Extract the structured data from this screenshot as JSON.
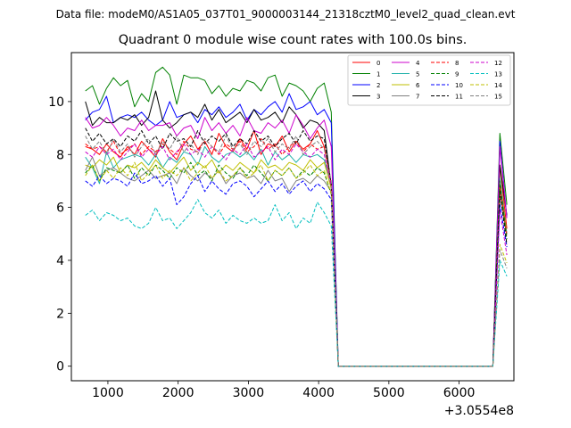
{
  "chart_data": {
    "type": "line",
    "suptitle": "Data file: modeM0/AS1A05_037T01_9000003144_21318cztM0_level2_quad_clean.evt",
    "title": "Quadrant 0 module wise count rates with 100.0s bins.",
    "xlabel": "",
    "ylabel": "",
    "x_offset_label": "+3.0554e8",
    "xlim": [
      480,
      6780
    ],
    "ylim": [
      -0.55,
      11.85
    ],
    "xticks": [
      1000,
      2000,
      3000,
      4000,
      5000,
      6000
    ],
    "yticks": [
      0,
      2,
      4,
      6,
      8,
      10
    ],
    "x": [
      680,
      780,
      880,
      980,
      1080,
      1180,
      1280,
      1380,
      1480,
      1580,
      1680,
      1780,
      1880,
      1980,
      2080,
      2180,
      2280,
      2380,
      2480,
      2580,
      2680,
      2780,
      2880,
      2980,
      3080,
      3180,
      3280,
      3380,
      3480,
      3580,
      3680,
      3780,
      3880,
      3980,
      4080,
      4180,
      4280,
      4380,
      4480,
      4580,
      4680,
      4780,
      4880,
      4980,
      5080,
      5180,
      5280,
      5380,
      5480,
      5580,
      5680,
      5780,
      5880,
      5980,
      6080,
      6180,
      6280,
      6380,
      6480,
      6580,
      6680
    ],
    "legend": {
      "position": "upper-right",
      "columns": 4
    },
    "series": [
      {
        "name": "0",
        "color": "#ff0000",
        "dash": "solid",
        "values": [
          8.3,
          8.2,
          8.0,
          8.4,
          8.1,
          7.9,
          8.3,
          8.0,
          8.5,
          8.2,
          7.9,
          8.6,
          8.1,
          7.8,
          8.4,
          8.7,
          8.2,
          8.5,
          8.0,
          8.8,
          8.3,
          8.1,
          8.6,
          8.2,
          8.9,
          8.0,
          8.4,
          8.3,
          8.7,
          8.1,
          8.5,
          8.2,
          8.4,
          8.9,
          8.3,
          6.8,
          0.0,
          0.0,
          0.0,
          0.0,
          0.0,
          0.0,
          0.0,
          0.0,
          0.0,
          0.0,
          0.0,
          0.0,
          0.0,
          0.0,
          0.0,
          0.0,
          0.0,
          0.0,
          0.0,
          0.0,
          0.0,
          0.0,
          0.0,
          7.6,
          5.2
        ]
      },
      {
        "name": "1",
        "color": "#008000",
        "dash": "solid",
        "values": [
          10.4,
          10.6,
          9.9,
          10.5,
          10.9,
          10.6,
          10.8,
          9.8,
          10.3,
          10.0,
          11.1,
          11.3,
          11.0,
          9.9,
          11.0,
          10.9,
          10.9,
          10.8,
          10.3,
          10.6,
          10.2,
          10.5,
          10.4,
          10.8,
          10.7,
          10.4,
          10.9,
          11.0,
          10.2,
          10.7,
          10.6,
          10.4,
          10.0,
          10.5,
          10.7,
          9.6,
          0.0,
          0.0,
          0.0,
          0.0,
          0.0,
          0.0,
          0.0,
          0.0,
          0.0,
          0.0,
          0.0,
          0.0,
          0.0,
          0.0,
          0.0,
          0.0,
          0.0,
          0.0,
          0.0,
          0.0,
          0.0,
          0.0,
          0.0,
          8.8,
          6.1
        ]
      },
      {
        "name": "2",
        "color": "#0000ff",
        "dash": "solid",
        "values": [
          9.3,
          9.6,
          9.7,
          10.2,
          9.2,
          9.4,
          9.5,
          9.4,
          9.6,
          9.3,
          9.1,
          9.3,
          10.0,
          9.4,
          9.5,
          9.6,
          9.2,
          9.7,
          9.5,
          9.8,
          9.4,
          9.6,
          9.9,
          9.3,
          9.7,
          9.5,
          9.8,
          10.0,
          9.6,
          10.3,
          9.7,
          9.8,
          10.0,
          9.5,
          9.7,
          9.2,
          0.0,
          0.0,
          0.0,
          0.0,
          0.0,
          0.0,
          0.0,
          0.0,
          0.0,
          0.0,
          0.0,
          0.0,
          0.0,
          0.0,
          0.0,
          0.0,
          0.0,
          0.0,
          0.0,
          0.0,
          0.0,
          0.0,
          0.0,
          8.5,
          5.6
        ]
      },
      {
        "name": "3",
        "color": "#000000",
        "dash": "solid",
        "values": [
          10.0,
          9.1,
          9.4,
          9.2,
          9.2,
          9.4,
          9.3,
          9.5,
          9.1,
          9.4,
          10.4,
          9.3,
          9.0,
          9.2,
          9.5,
          9.6,
          9.4,
          9.9,
          9.3,
          9.7,
          9.2,
          9.4,
          9.6,
          9.2,
          9.7,
          9.3,
          9.4,
          9.6,
          9.2,
          9.8,
          9.5,
          9.0,
          9.3,
          9.2,
          8.9,
          6.8,
          0.0,
          0.0,
          0.0,
          0.0,
          0.0,
          0.0,
          0.0,
          0.0,
          0.0,
          0.0,
          0.0,
          0.0,
          0.0,
          0.0,
          0.0,
          0.0,
          0.0,
          0.0,
          0.0,
          0.0,
          0.0,
          0.0,
          0.0,
          7.6,
          5.7
        ]
      },
      {
        "name": "4",
        "color": "#cc00cc",
        "dash": "solid",
        "values": [
          9.4,
          9.0,
          9.1,
          9.4,
          9.1,
          8.7,
          9.0,
          8.9,
          9.3,
          8.9,
          9.1,
          9.1,
          9.2,
          8.7,
          9.0,
          9.1,
          8.6,
          9.4,
          8.9,
          9.2,
          8.8,
          9.1,
          8.7,
          9.4,
          8.9,
          8.8,
          9.2,
          9.0,
          9.3,
          8.8,
          9.5,
          9.1,
          8.6,
          9.0,
          9.3,
          8.3,
          0.0,
          0.0,
          0.0,
          0.0,
          0.0,
          0.0,
          0.0,
          0.0,
          0.0,
          0.0,
          0.0,
          0.0,
          0.0,
          0.0,
          0.0,
          0.0,
          0.0,
          0.0,
          0.0,
          0.0,
          0.0,
          0.0,
          0.0,
          8.3,
          5.6
        ]
      },
      {
        "name": "5",
        "color": "#20b2aa",
        "dash": "solid",
        "values": [
          7.9,
          7.5,
          6.9,
          8.1,
          7.5,
          7.8,
          7.9,
          8.0,
          7.9,
          7.6,
          8.0,
          7.5,
          7.9,
          7.7,
          8.1,
          8.0,
          7.6,
          8.3,
          7.9,
          7.7,
          8.0,
          8.1,
          7.9,
          8.1,
          7.8,
          8.2,
          7.6,
          8.1,
          7.8,
          8.0,
          7.7,
          8.0,
          7.9,
          8.0,
          7.8,
          6.9,
          0.0,
          0.0,
          0.0,
          0.0,
          0.0,
          0.0,
          0.0,
          0.0,
          0.0,
          0.0,
          0.0,
          0.0,
          0.0,
          0.0,
          0.0,
          0.0,
          0.0,
          0.0,
          0.0,
          0.0,
          0.0,
          0.0,
          0.0,
          7.1,
          5.0
        ]
      },
      {
        "name": "6",
        "color": "#bfbf00",
        "dash": "solid",
        "values": [
          7.6,
          7.5,
          7.8,
          7.6,
          7.9,
          7.3,
          7.6,
          7.5,
          7.7,
          7.4,
          7.8,
          7.5,
          7.3,
          7.6,
          7.9,
          7.4,
          7.7,
          7.5,
          7.8,
          7.3,
          7.6,
          7.4,
          7.7,
          7.5,
          7.3,
          7.8,
          7.5,
          7.6,
          7.4,
          7.7,
          7.6,
          7.4,
          7.8,
          7.5,
          7.7,
          6.7,
          0.0,
          0.0,
          0.0,
          0.0,
          0.0,
          0.0,
          0.0,
          0.0,
          0.0,
          0.0,
          0.0,
          0.0,
          0.0,
          0.0,
          0.0,
          0.0,
          0.0,
          0.0,
          0.0,
          0.0,
          0.0,
          0.0,
          0.0,
          6.9,
          5.0
        ]
      },
      {
        "name": "7",
        "color": "#808080",
        "dash": "solid",
        "values": [
          7.4,
          7.9,
          7.2,
          7.4,
          7.5,
          7.3,
          7.1,
          7.0,
          7.2,
          7.4,
          7.1,
          7.2,
          7.3,
          6.9,
          7.5,
          7.2,
          7.0,
          7.3,
          7.1,
          7.4,
          6.9,
          7.2,
          7.3,
          7.1,
          7.2,
          6.9,
          7.4,
          7.0,
          7.1,
          6.6,
          7.0,
          7.1,
          6.9,
          7.2,
          7.0,
          6.6,
          0.0,
          0.0,
          0.0,
          0.0,
          0.0,
          0.0,
          0.0,
          0.0,
          0.0,
          0.0,
          0.0,
          0.0,
          0.0,
          0.0,
          0.0,
          0.0,
          0.0,
          0.0,
          0.0,
          0.0,
          0.0,
          0.0,
          0.0,
          6.4,
          5.0
        ]
      },
      {
        "name": "8",
        "color": "#ff0000",
        "dash": "dashed",
        "values": [
          8.4,
          8.2,
          8.3,
          8.1,
          8.5,
          8.0,
          8.2,
          8.4,
          8.0,
          8.3,
          8.1,
          8.4,
          8.2,
          8.0,
          8.5,
          8.2,
          8.1,
          8.6,
          8.3,
          8.0,
          8.4,
          8.2,
          8.5,
          8.1,
          8.3,
          8.6,
          8.2,
          8.4,
          8.0,
          8.3,
          8.5,
          8.1,
          8.4,
          8.2,
          8.3,
          6.9,
          0.0,
          0.0,
          0.0,
          0.0,
          0.0,
          0.0,
          0.0,
          0.0,
          0.0,
          0.0,
          0.0,
          0.0,
          0.0,
          0.0,
          0.0,
          0.0,
          0.0,
          0.0,
          0.0,
          0.0,
          0.0,
          0.0,
          0.0,
          6.8,
          4.9
        ]
      },
      {
        "name": "9",
        "color": "#008000",
        "dash": "dashed",
        "values": [
          7.3,
          7.6,
          7.0,
          7.5,
          7.4,
          7.3,
          7.6,
          7.1,
          7.5,
          7.2,
          7.6,
          7.4,
          7.1,
          7.5,
          7.3,
          7.7,
          7.2,
          7.4,
          7.0,
          7.6,
          7.3,
          7.1,
          7.5,
          7.2,
          7.6,
          7.3,
          7.0,
          7.4,
          7.2,
          7.5,
          7.1,
          7.4,
          7.2,
          7.5,
          7.3,
          6.5,
          0.0,
          0.0,
          0.0,
          0.0,
          0.0,
          0.0,
          0.0,
          0.0,
          0.0,
          0.0,
          0.0,
          0.0,
          0.0,
          0.0,
          0.0,
          0.0,
          0.0,
          0.0,
          0.0,
          0.0,
          0.0,
          0.0,
          0.0,
          7.0,
          4.8
        ]
      },
      {
        "name": "10",
        "color": "#0000ff",
        "dash": "dashed",
        "values": [
          7.0,
          6.8,
          7.2,
          6.9,
          7.1,
          7.0,
          6.8,
          7.3,
          6.9,
          7.0,
          7.2,
          6.8,
          7.1,
          6.1,
          6.4,
          6.9,
          7.2,
          6.6,
          7.0,
          6.7,
          6.5,
          6.9,
          7.0,
          6.8,
          6.4,
          6.7,
          7.0,
          6.6,
          6.9,
          6.5,
          6.8,
          7.0,
          6.6,
          6.9,
          6.7,
          6.3,
          0.0,
          0.0,
          0.0,
          0.0,
          0.0,
          0.0,
          0.0,
          0.0,
          0.0,
          0.0,
          0.0,
          0.0,
          0.0,
          0.0,
          0.0,
          0.0,
          0.0,
          0.0,
          0.0,
          0.0,
          0.0,
          0.0,
          0.0,
          6.1,
          4.5
        ]
      },
      {
        "name": "11",
        "color": "#000000",
        "dash": "dashed",
        "values": [
          9.0,
          8.5,
          8.8,
          8.4,
          8.6,
          8.3,
          8.7,
          8.5,
          8.9,
          8.4,
          8.7,
          8.2,
          8.8,
          8.5,
          8.6,
          8.3,
          8.9,
          8.4,
          8.7,
          8.5,
          8.8,
          8.3,
          8.6,
          8.4,
          8.9,
          8.5,
          8.7,
          8.3,
          8.6,
          8.8,
          8.4,
          8.9,
          8.5,
          8.7,
          8.6,
          6.9,
          0.0,
          0.0,
          0.0,
          0.0,
          0.0,
          0.0,
          0.0,
          0.0,
          0.0,
          0.0,
          0.0,
          0.0,
          0.0,
          0.0,
          0.0,
          0.0,
          0.0,
          0.0,
          0.0,
          0.0,
          0.0,
          0.0,
          0.0,
          6.6,
          4.6
        ]
      },
      {
        "name": "12",
        "color": "#cc00cc",
        "dash": "dashed",
        "values": [
          8.1,
          7.9,
          8.3,
          8.0,
          8.2,
          7.8,
          8.1,
          8.4,
          7.9,
          8.2,
          8.0,
          8.3,
          7.8,
          8.1,
          8.4,
          8.0,
          8.2,
          7.9,
          8.3,
          8.1,
          7.8,
          8.2,
          8.0,
          8.4,
          7.9,
          8.1,
          8.3,
          7.8,
          8.2,
          8.0,
          8.4,
          8.1,
          7.9,
          8.2,
          8.0,
          6.8,
          0.0,
          0.0,
          0.0,
          0.0,
          0.0,
          0.0,
          0.0,
          0.0,
          0.0,
          0.0,
          0.0,
          0.0,
          0.0,
          0.0,
          0.0,
          0.0,
          0.0,
          0.0,
          0.0,
          0.0,
          0.0,
          0.0,
          0.0,
          5.9,
          4.2
        ]
      },
      {
        "name": "13",
        "color": "#00bfbf",
        "dash": "dashed",
        "values": [
          5.7,
          5.9,
          5.5,
          5.8,
          5.7,
          5.5,
          5.6,
          5.3,
          5.2,
          5.4,
          6.0,
          5.5,
          5.6,
          5.2,
          5.5,
          5.8,
          6.3,
          5.8,
          5.6,
          5.9,
          5.4,
          5.7,
          5.5,
          5.4,
          5.6,
          5.4,
          5.5,
          6.1,
          5.5,
          5.8,
          5.2,
          5.6,
          5.4,
          6.2,
          5.8,
          5.3,
          0.0,
          0.0,
          0.0,
          0.0,
          0.0,
          0.0,
          0.0,
          0.0,
          0.0,
          0.0,
          0.0,
          0.0,
          0.0,
          0.0,
          0.0,
          0.0,
          0.0,
          0.0,
          0.0,
          0.0,
          0.0,
          0.0,
          0.0,
          4.0,
          3.4
        ]
      },
      {
        "name": "14",
        "color": "#bfbf00",
        "dash": "dashed",
        "values": [
          7.2,
          7.6,
          7.0,
          7.4,
          7.1,
          7.5,
          7.2,
          7.7,
          7.0,
          7.3,
          7.6,
          7.1,
          7.4,
          7.2,
          7.5,
          7.0,
          7.3,
          7.6,
          7.1,
          7.4,
          7.0,
          7.2,
          7.5,
          7.1,
          7.3,
          7.6,
          7.0,
          7.4,
          7.2,
          7.5,
          7.1,
          7.3,
          7.6,
          7.2,
          7.4,
          6.5,
          0.0,
          0.0,
          0.0,
          0.0,
          0.0,
          0.0,
          0.0,
          0.0,
          0.0,
          0.0,
          0.0,
          0.0,
          0.0,
          0.0,
          0.0,
          0.0,
          0.0,
          0.0,
          0.0,
          0.0,
          0.0,
          0.0,
          0.0,
          4.6,
          3.9
        ]
      },
      {
        "name": "15",
        "color": "#808080",
        "dash": "dashed",
        "values": [
          8.7,
          8.2,
          8.5,
          8.0,
          8.6,
          8.1,
          8.4,
          7.9,
          8.3,
          8.6,
          8.0,
          8.5,
          8.2,
          8.7,
          8.1,
          8.4,
          8.0,
          8.6,
          8.3,
          8.1,
          8.7,
          8.2,
          8.4,
          8.0,
          8.5,
          8.3,
          8.6,
          8.1,
          8.4,
          8.2,
          8.7,
          8.0,
          8.3,
          8.5,
          8.2,
          7.0,
          0.0,
          0.0,
          0.0,
          0.0,
          0.0,
          0.0,
          0.0,
          0.0,
          0.0,
          0.0,
          0.0,
          0.0,
          0.0,
          0.0,
          0.0,
          0.0,
          0.0,
          0.0,
          0.0,
          0.0,
          0.0,
          0.0,
          0.0,
          4.4,
          3.7
        ]
      }
    ]
  }
}
